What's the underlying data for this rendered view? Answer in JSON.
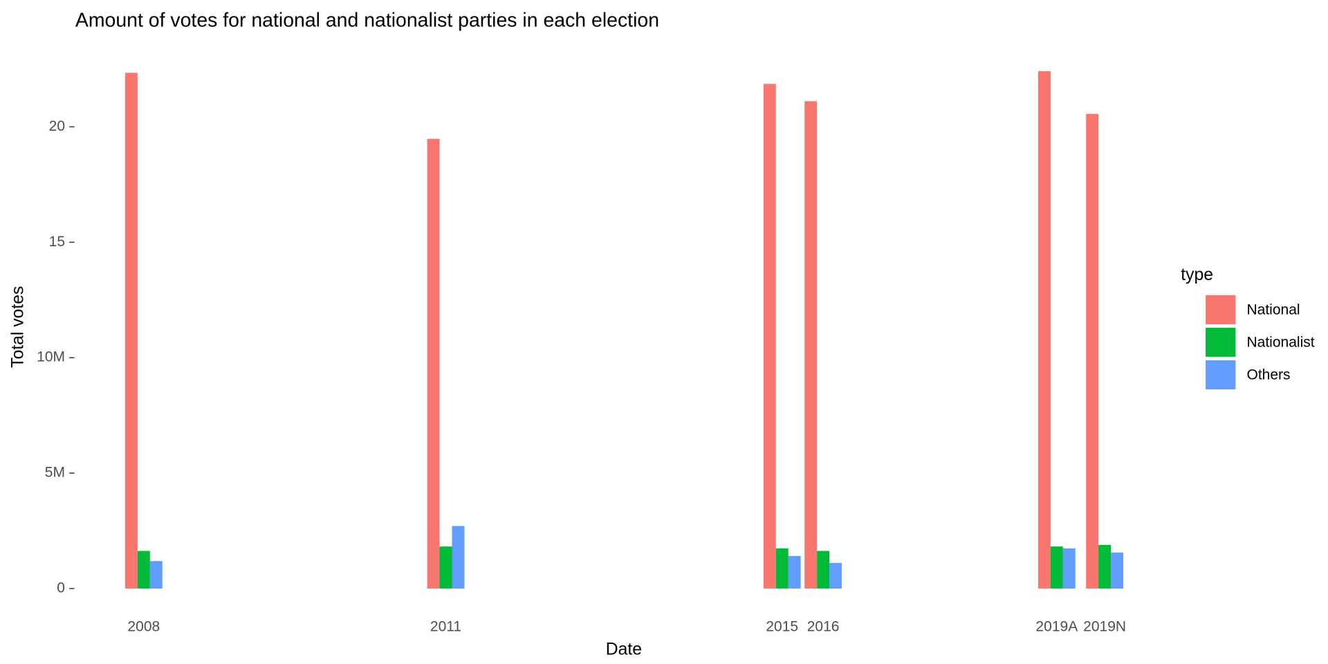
{
  "chart_data": {
    "type": "bar",
    "title": "Amount of votes for national and nationalist parties in each election",
    "x_label": "Date",
    "y_label": "Total votes",
    "categories": [
      "2008",
      "2011",
      "2015",
      "2016",
      "2019A",
      "2019N"
    ],
    "series": [
      {
        "name": "National",
        "color": "#F8766D",
        "values": [
          22340000,
          19480000,
          21860000,
          21110000,
          22410000,
          20560000
        ]
      },
      {
        "name": "Nationalist",
        "color": "#00BA38",
        "values": [
          1630000,
          1820000,
          1740000,
          1630000,
          1820000,
          1890000
        ]
      },
      {
        "name": "Others",
        "color": "#619CFF",
        "values": [
          1190000,
          2710000,
          1410000,
          1110000,
          1740000,
          1560000
        ]
      }
    ],
    "ylim": [
      -600000,
      22900000
    ],
    "yticks": [
      0,
      {
        "value": 5000000,
        "label": "5M"
      },
      {
        "value": 10000000,
        "label": "10M"
      },
      {
        "value": 15000000,
        "label": "15"
      },
      {
        "value": 20000000,
        "label": "20"
      }
    ],
    "legend_title": "type",
    "legend": "right",
    "grid": false
  }
}
